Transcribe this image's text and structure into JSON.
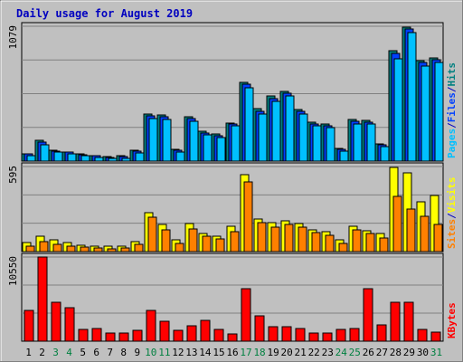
{
  "chart_data": {
    "type": "bar",
    "title": "Daily usage for August 2019",
    "categories": [
      "1",
      "2",
      "3",
      "4",
      "5",
      "6",
      "7",
      "8",
      "9",
      "10",
      "11",
      "12",
      "13",
      "14",
      "15",
      "16",
      "17",
      "18",
      "19",
      "20",
      "21",
      "22",
      "23",
      "24",
      "25",
      "26",
      "27",
      "28",
      "29",
      "30",
      "31"
    ],
    "weekend_days": [
      "3",
      "4",
      "10",
      "11",
      "17",
      "18",
      "24",
      "25",
      "31"
    ],
    "panels": [
      {
        "id": "hits",
        "max_label": "1079",
        "ymax": 1079,
        "legend": [
          "Pages",
          "/",
          "Files",
          "/",
          "Hits"
        ],
        "legend_colors": [
          "#00c0ff",
          "#0000c0",
          "#0040ff",
          "#0000c0",
          "#008080"
        ],
        "series": [
          {
            "name": "Hits",
            "color": "#008080",
            "values": [
              60,
              165,
              85,
              75,
              55,
              45,
              35,
              40,
              85,
              380,
              370,
              95,
              355,
              240,
              215,
              305,
              630,
              420,
              520,
              560,
              410,
              315,
              300,
              100,
              330,
              325,
              140,
              880,
              1075,
              805,
              825
            ]
          },
          {
            "name": "Files",
            "color": "#0040ff",
            "values": [
              55,
              150,
              80,
              70,
              50,
              40,
              30,
              35,
              80,
              365,
              355,
              90,
              340,
              225,
              200,
              295,
              615,
              395,
              500,
              540,
              395,
              300,
              285,
              95,
              320,
              310,
              130,
              860,
              1060,
              790,
              810
            ]
          },
          {
            "name": "Pages",
            "color": "#00c0ff",
            "values": [
              40,
              130,
              70,
              60,
              40,
              30,
              20,
              25,
              65,
              340,
              330,
              75,
              320,
              210,
              185,
              280,
              590,
              380,
              480,
              520,
              375,
              280,
              265,
              80,
              300,
              295,
              115,
              820,
              1030,
              760,
              790
            ]
          }
        ]
      },
      {
        "id": "visits",
        "max_label": "595",
        "ymax": 595,
        "legend": [
          "Sites",
          "/",
          "Visits"
        ],
        "legend_colors": [
          "#ff8000",
          "#0000c0",
          "#ffff00"
        ],
        "series": [
          {
            "name": "Visits",
            "color": "#ffff00",
            "values": [
              65,
              110,
              80,
              65,
              45,
              40,
              35,
              40,
              70,
              275,
              190,
              85,
              195,
              125,
              110,
              180,
              535,
              225,
              205,
              215,
              195,
              155,
              140,
              85,
              175,
              145,
              125,
              590,
              550,
              345,
              395
            ]
          },
          {
            "name": "Sites",
            "color": "#ff8000",
            "values": [
              40,
              70,
              50,
              40,
              30,
              25,
              20,
              25,
              50,
              240,
              150,
              60,
              160,
              105,
              90,
              140,
              490,
              205,
              170,
              190,
              170,
              130,
              115,
              60,
              150,
              125,
              95,
              385,
              295,
              250,
              190
            ]
          }
        ]
      },
      {
        "id": "kbytes",
        "max_label": "10550",
        "ymax": 10550,
        "legend": [
          "KBytes"
        ],
        "legend_colors": [
          "#ff0000"
        ],
        "series": [
          {
            "name": "KBytes",
            "color": "#ff0000",
            "values": [
              3900,
              10550,
              4850,
              4250,
              1500,
              1550,
              1000,
              1050,
              1350,
              3850,
              2500,
              1350,
              1950,
              2600,
              1450,
              950,
              6600,
              3200,
              1800,
              1800,
              1600,
              1050,
              1050,
              1500,
              1600,
              6600,
              2000,
              4850,
              4850,
              1450,
              1150
            ]
          }
        ]
      }
    ]
  }
}
